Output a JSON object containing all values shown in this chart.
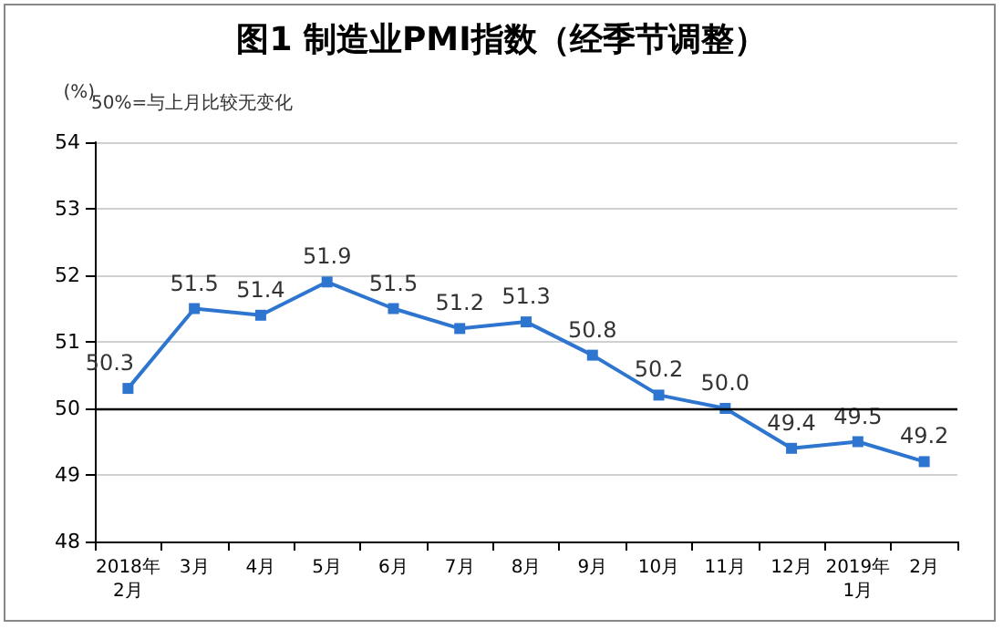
{
  "chart_data": {
    "type": "line",
    "title": "图1 制造业PMI指数（经季节调整）",
    "ylabel": "(%)",
    "annotations": [
      "50%=与上月比较无变化"
    ],
    "categories": [
      "2018年\n2月",
      "3月",
      "4月",
      "5月",
      "6月",
      "7月",
      "8月",
      "9月",
      "10月",
      "11月",
      "12月",
      "2019年\n1月",
      "2月"
    ],
    "series": [
      {
        "color": "#2e75d0",
        "values": [
          50.3,
          51.5,
          51.4,
          51.9,
          51.5,
          51.2,
          51.3,
          50.8,
          50.2,
          50.0,
          49.4,
          49.5,
          49.2
        ],
        "value_labels": [
          "50.3",
          "51.5",
          "51.4",
          "51.9",
          "51.5",
          "51.2",
          "51.3",
          "50.8",
          "50.2",
          "50.0",
          "49.4",
          "49.5",
          "49.2"
        ]
      }
    ],
    "ylim": [
      48,
      54
    ],
    "yticks": [
      48,
      49,
      50,
      51,
      52,
      53,
      54
    ],
    "grid": "y",
    "marker": "square",
    "line_style": "solid",
    "ref_lines": [
      {
        "axis": "y",
        "value": 50,
        "color": "#000000"
      }
    ]
  }
}
